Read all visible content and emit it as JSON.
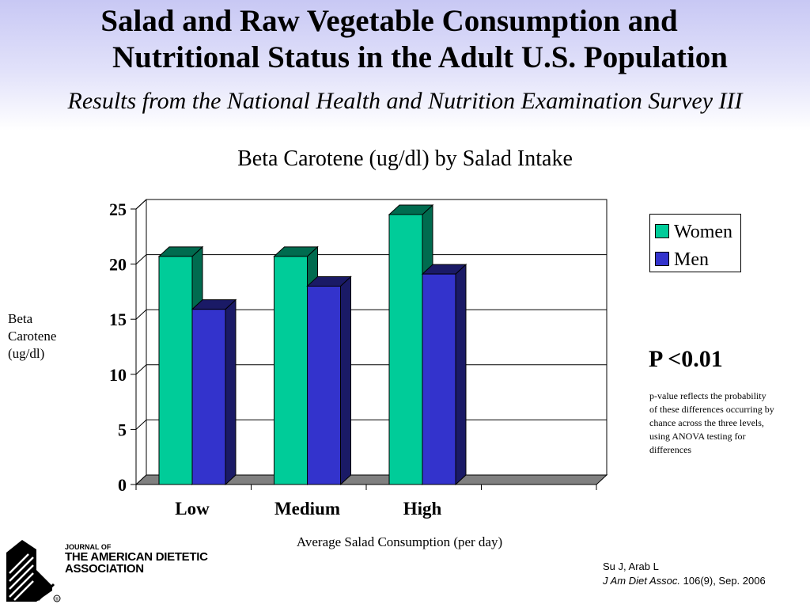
{
  "slide": {
    "title_line1": "Salad and Raw Vegetable Consumption and",
    "title_line2": "Nutritional Status in the Adult U.S. Population",
    "subtitle": "Results from the National Health and Nutrition Examination Survey III",
    "p_value": "P <0.01",
    "p_note": "p-value reflects the probability of these differences occurring by chance across the three levels, using ANOVA testing for differences",
    "journal_line1": "JOURNAL OF",
    "journal_line2": "THE AMERICAN DIETETIC",
    "journal_line3": "ASSOCIATION",
    "registered_mark": "®",
    "citation_authors": "Su J, Arab L",
    "citation_journal": "J Am Diet Assoc.",
    "citation_details": " 106(9), Sep. 2006"
  },
  "colors": {
    "women": "#00cc99",
    "women_side": "#006b4f",
    "men": "#3333cc",
    "men_side": "#1a1a66",
    "floor": "#808080"
  },
  "chart_data": {
    "type": "bar",
    "title": "Beta Carotene (ug/dl) by Salad Intake",
    "xlabel": "Average Salad Consumption (per day)",
    "ylabel": "Beta Carotene (ug/dl)",
    "ylabel_lines": [
      "Beta",
      "Carotene",
      "(ug/dl)"
    ],
    "categories": [
      "Low",
      "Medium",
      "High"
    ],
    "series": [
      {
        "name": "Women",
        "values": [
          20.7,
          20.7,
          24.5
        ]
      },
      {
        "name": "Men",
        "values": [
          15.9,
          18.0,
          19.1
        ]
      }
    ],
    "ylim": [
      0,
      25
    ],
    "yticks": [
      0,
      5,
      10,
      15,
      20,
      25
    ],
    "grid": true,
    "legend": "right",
    "style": "3d"
  }
}
